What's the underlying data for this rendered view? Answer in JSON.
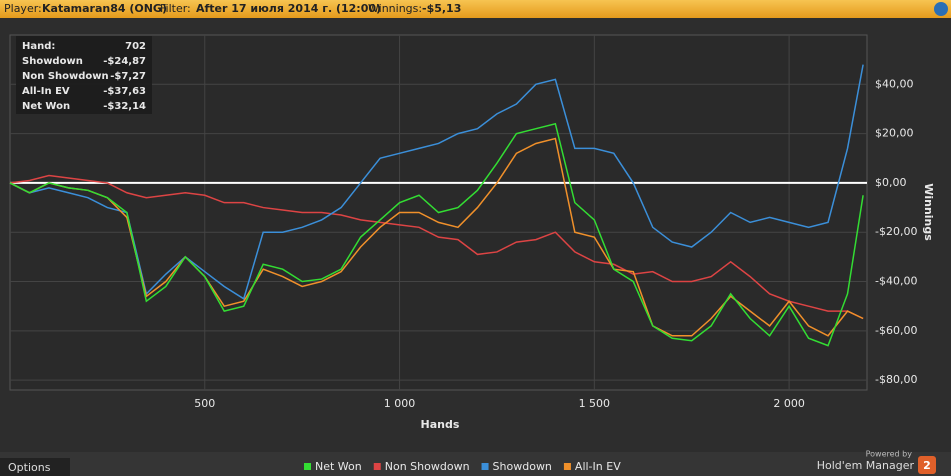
{
  "header": {
    "player_label": "Player:",
    "player": "Katamaran84 (ONG)",
    "filter_label": "Filter:",
    "filter": "After 17 июля 2014 г. (12:00)",
    "winnings_label": "Winnings:",
    "winnings": "-$5,13"
  },
  "chart_data": {
    "type": "line",
    "x_label": "Hands",
    "y_label": "Winnings",
    "x": [
      0,
      50,
      100,
      150,
      200,
      250,
      300,
      350,
      400,
      450,
      500,
      550,
      600,
      650,
      700,
      750,
      800,
      850,
      900,
      950,
      1000,
      1050,
      1100,
      1150,
      1200,
      1250,
      1300,
      1350,
      1400,
      1450,
      1500,
      1550,
      1600,
      1650,
      1700,
      1750,
      1800,
      1850,
      1900,
      1950,
      2000,
      2050,
      2100,
      2150,
      2190
    ],
    "series": [
      {
        "name": "Net Won",
        "color": "#33dd33",
        "values": [
          0,
          -4,
          0,
          -2,
          -3,
          -6,
          -12,
          -48,
          -42,
          -30,
          -38,
          -52,
          -50,
          -33,
          -35,
          -40,
          -39,
          -35,
          -22,
          -15,
          -8,
          -5,
          -12,
          -10,
          -3,
          8,
          20,
          22,
          24,
          -8,
          -15,
          -35,
          -40,
          -58,
          -63,
          -64,
          -58,
          -45,
          -55,
          -62,
          -50,
          -63,
          -66,
          -45,
          -5
        ]
      },
      {
        "name": "Non Showdown",
        "color": "#dd4444",
        "values": [
          0,
          1,
          3,
          2,
          1,
          0,
          -4,
          -6,
          -5,
          -4,
          -5,
          -8,
          -8,
          -10,
          -11,
          -12,
          -12,
          -13,
          -15,
          -16,
          -17,
          -18,
          -22,
          -23,
          -29,
          -28,
          -24,
          -23,
          -20,
          -28,
          -32,
          -33,
          -37,
          -36,
          -40,
          -40,
          -38,
          -32,
          -38,
          -45,
          -48,
          -50,
          -52,
          -52,
          -55
        ]
      },
      {
        "name": "Showdown",
        "color": "#3b8fd9",
        "values": [
          0,
          -4,
          -2,
          -4,
          -6,
          -10,
          -12,
          -45,
          -37,
          -30,
          -36,
          -42,
          -47,
          -20,
          -20,
          -18,
          -15,
          -10,
          0,
          10,
          12,
          14,
          16,
          20,
          22,
          28,
          32,
          40,
          42,
          14,
          14,
          12,
          0,
          -18,
          -24,
          -26,
          -20,
          -12,
          -16,
          -14,
          -16,
          -18,
          -16,
          14,
          48
        ]
      },
      {
        "name": "All-In EV",
        "color": "#f0902a",
        "values": [
          0,
          -4,
          0,
          -2,
          -3,
          -6,
          -14,
          -46,
          -40,
          -30,
          -38,
          -50,
          -48,
          -35,
          -38,
          -42,
          -40,
          -36,
          -26,
          -18,
          -12,
          -12,
          -16,
          -18,
          -10,
          0,
          12,
          16,
          18,
          -20,
          -22,
          -35,
          -36,
          -58,
          -62,
          -62,
          -55,
          -46,
          -52,
          -58,
          -48,
          -58,
          -62,
          -52,
          -55
        ]
      }
    ],
    "xlim": [
      0,
      2200
    ],
    "xticks": [
      {
        "value": 500,
        "label": "500"
      },
      {
        "value": 1000,
        "label": "1 000"
      },
      {
        "value": 1500,
        "label": "1 500"
      },
      {
        "value": 2000,
        "label": "2 000"
      }
    ],
    "ylim": [
      -84,
      60
    ],
    "yticks": [
      {
        "value": -80,
        "label": "-$80,00"
      },
      {
        "value": -60,
        "label": "-$60,00"
      },
      {
        "value": -40,
        "label": "-$40,00"
      },
      {
        "value": -20,
        "label": "-$20,00"
      },
      {
        "value": 0,
        "label": "$0,00"
      },
      {
        "value": 20,
        "label": "$20,00"
      },
      {
        "value": 40,
        "label": "$40,00"
      }
    ],
    "grid": true,
    "legend": "bottom",
    "tooltip": [
      [
        "Hand:",
        "702"
      ],
      [
        "Showdown",
        "-$24,87"
      ],
      [
        "Non Showdown",
        "-$7,27"
      ],
      [
        "All-In EV",
        "-$37,63"
      ],
      [
        "Net Won",
        "-$32,14"
      ]
    ]
  },
  "footer": {
    "options": "Options",
    "powered_by": "Powered by",
    "brand": "Hold'em Manager",
    "brand_version": "2"
  }
}
